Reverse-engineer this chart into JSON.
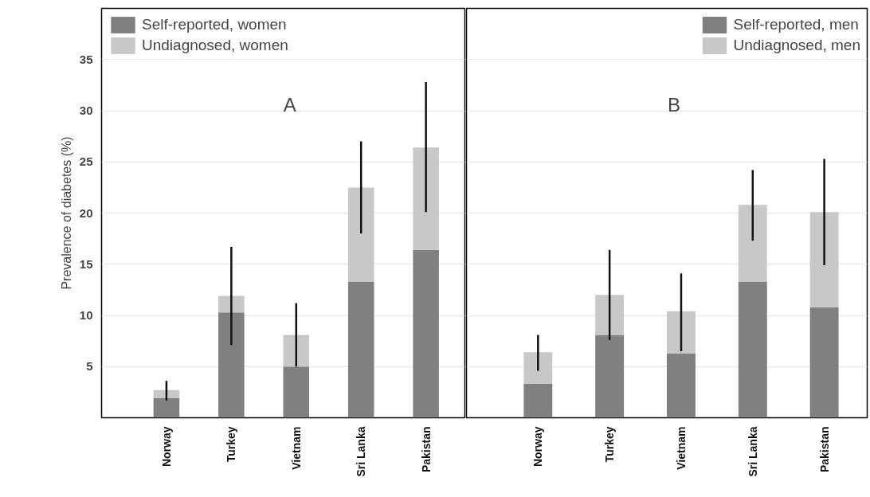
{
  "chart_data": [
    {
      "type": "bar",
      "stacked": true,
      "title": "A",
      "ylabel": "Prevalence of diabetes (%)",
      "categories": [
        "Norway",
        "Turkey",
        "Vietnam",
        "Sri Lanka",
        "Pakistan"
      ],
      "ylim": [
        0,
        40
      ],
      "yticks": [
        5,
        10,
        15,
        20,
        25,
        30,
        35
      ],
      "grid": "y",
      "legend": "top left",
      "series": [
        {
          "name": "Self-reported, women",
          "color": "#808080",
          "values": [
            1.9,
            10.3,
            5.0,
            13.3,
            16.4
          ]
        },
        {
          "name": "Undiagnosed, women",
          "color": "#c8c8c8",
          "values": [
            0.8,
            1.6,
            3.1,
            9.2,
            10.0
          ],
          "errors": [
            [
              1.7,
              3.6
            ],
            [
              7.1,
              16.7
            ],
            [
              5.0,
              11.2
            ],
            [
              18.0,
              27.0
            ],
            [
              20.1,
              32.8
            ]
          ]
        }
      ]
    },
    {
      "type": "bar",
      "stacked": true,
      "title": "B",
      "categories": [
        "Norway",
        "Turkey",
        "Vietnam",
        "Sri Lanka",
        "Pakistan"
      ],
      "ylim": [
        0,
        40
      ],
      "yticks": [
        5,
        10,
        15,
        20,
        25,
        30,
        35
      ],
      "grid": "y",
      "legend": "top right",
      "tick_labels": "x",
      "series": [
        {
          "name": "Self-reported, men",
          "color": "#808080",
          "values": [
            3.3,
            8.1,
            6.3,
            13.3,
            10.8
          ]
        },
        {
          "name": "Undiagnosed, men",
          "color": "#c8c8c8",
          "values": [
            3.1,
            3.9,
            4.1,
            7.5,
            9.3
          ],
          "errors": [
            [
              4.6,
              8.1
            ],
            [
              7.6,
              16.4
            ],
            [
              6.5,
              14.1
            ],
            [
              17.3,
              24.2
            ],
            [
              14.9,
              25.3
            ]
          ]
        }
      ]
    }
  ]
}
